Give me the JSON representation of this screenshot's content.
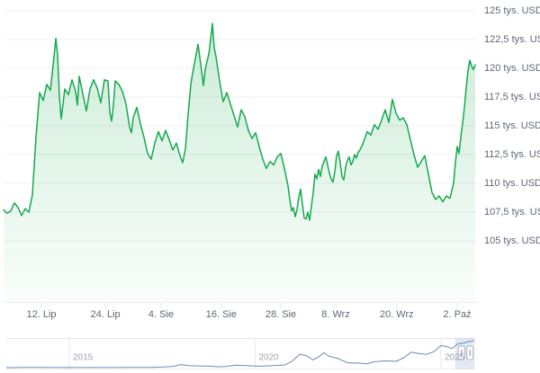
{
  "chart_data": {
    "type": "area",
    "unit": "tys. USD",
    "grid": true,
    "legend": "none",
    "main": {
      "line_color": "#16a94e",
      "area_tint_color": "#16a94e",
      "ylim": [
        105,
        125
      ],
      "y_axis_labels": [
        {
          "price": 125,
          "label": "125 tys. USD"
        },
        {
          "price": 122.5,
          "label": "122,5 tys. USD"
        },
        {
          "price": 120,
          "label": "120 tys. USD"
        },
        {
          "price": 117.5,
          "label": "117,5 tys. USD"
        },
        {
          "price": 115,
          "label": "115 tys. USD"
        },
        {
          "price": 112.5,
          "label": "112,5 tys. USD"
        },
        {
          "price": 110,
          "label": "110 tys. USD"
        },
        {
          "price": 107.5,
          "label": "107,5 tys. USD"
        },
        {
          "price": 105,
          "label": "105 tys. USD"
        }
      ],
      "x_axis_labels": [
        {
          "label": "12. Lip",
          "day": 7.5
        },
        {
          "label": "24. Lip",
          "day": 20.2
        },
        {
          "label": "4. Sie",
          "day": 31.25
        },
        {
          "label": "16. Sie",
          "day": 43.2
        },
        {
          "label": "28. Sie",
          "day": 55
        },
        {
          "label": "8. Wrz",
          "day": 65.9
        },
        {
          "label": "20. Wrz",
          "day": 78
        },
        {
          "label": "2. Paź",
          "day": 90
        }
      ],
      "points": [
        [
          0,
          107.7
        ],
        [
          0.71,
          107.4
        ],
        [
          1.43,
          107.6
        ],
        [
          2.14,
          108.3
        ],
        [
          2.86,
          107.9
        ],
        [
          3.57,
          107.2
        ],
        [
          4.29,
          107.8
        ],
        [
          5,
          107.5
        ],
        [
          5.71,
          109.0
        ],
        [
          6.43,
          114.0
        ],
        [
          7.14,
          117.9
        ],
        [
          7.86,
          117.2
        ],
        [
          8.57,
          118.6
        ],
        [
          9.29,
          118.1
        ],
        [
          10,
          121.0
        ],
        [
          10.36,
          122.6
        ],
        [
          10.71,
          121.2
        ],
        [
          11.07,
          117.6
        ],
        [
          11.43,
          115.6
        ],
        [
          11.79,
          116.9
        ],
        [
          12.14,
          118.2
        ],
        [
          12.86,
          117.7
        ],
        [
          13.57,
          119.0
        ],
        [
          14.29,
          118.0
        ],
        [
          14.64,
          116.8
        ],
        [
          15,
          119.3
        ],
        [
          15.71,
          117.8
        ],
        [
          16.43,
          116.3
        ],
        [
          17.14,
          118.2
        ],
        [
          17.86,
          119.0
        ],
        [
          18.57,
          118.3
        ],
        [
          19.29,
          117.0
        ],
        [
          20,
          119.0
        ],
        [
          20.71,
          118.9
        ],
        [
          21.07,
          116.2
        ],
        [
          21.43,
          115.4
        ],
        [
          21.79,
          116.8
        ],
        [
          22.14,
          118.9
        ],
        [
          22.86,
          118.6
        ],
        [
          23.57,
          118.0
        ],
        [
          24.29,
          116.9
        ],
        [
          25,
          114.9
        ],
        [
          25.36,
          114.4
        ],
        [
          25.71,
          115.7
        ],
        [
          26.43,
          116.6
        ],
        [
          27.14,
          115.2
        ],
        [
          27.86,
          114.0
        ],
        [
          28.57,
          112.6
        ],
        [
          29.29,
          112.1
        ],
        [
          30,
          113.5
        ],
        [
          30.71,
          114.5
        ],
        [
          31.43,
          113.7
        ],
        [
          32.14,
          114.6
        ],
        [
          32.86,
          113.8
        ],
        [
          33.57,
          112.9
        ],
        [
          34.29,
          113.5
        ],
        [
          35,
          112.4
        ],
        [
          35.54,
          111.8
        ],
        [
          36.07,
          113.0
        ],
        [
          36.61,
          116.0
        ],
        [
          37.14,
          118.6
        ],
        [
          37.68,
          120.0
        ],
        [
          38.21,
          121.2
        ],
        [
          38.57,
          122.1
        ],
        [
          39.29,
          119.8
        ],
        [
          39.64,
          118.5
        ],
        [
          40,
          119.9
        ],
        [
          40.36,
          120.6
        ],
        [
          40.71,
          121.2
        ],
        [
          41.07,
          122.5
        ],
        [
          41.43,
          123.9
        ],
        [
          41.79,
          121.8
        ],
        [
          42.14,
          121.0
        ],
        [
          42.86,
          118.9
        ],
        [
          43.57,
          117.1
        ],
        [
          44.29,
          117.9
        ],
        [
          45,
          116.9
        ],
        [
          45.71,
          115.9
        ],
        [
          46.43,
          114.9
        ],
        [
          47.14,
          116.4
        ],
        [
          47.86,
          115.8
        ],
        [
          48.57,
          114.6
        ],
        [
          49.29,
          113.9
        ],
        [
          50,
          114.4
        ],
        [
          50.71,
          113.2
        ],
        [
          51.43,
          112.1
        ],
        [
          52.14,
          111.3
        ],
        [
          52.86,
          111.9
        ],
        [
          53.57,
          111.6
        ],
        [
          54.29,
          112.3
        ],
        [
          55,
          112.6
        ],
        [
          55.71,
          111.3
        ],
        [
          56.43,
          109.8
        ],
        [
          56.79,
          108.6
        ],
        [
          57.14,
          107.6
        ],
        [
          57.5,
          107.9
        ],
        [
          57.86,
          107.1
        ],
        [
          58.21,
          107.7
        ],
        [
          58.57,
          108.8
        ],
        [
          58.93,
          109.5
        ],
        [
          59.29,
          108.2
        ],
        [
          59.64,
          107.0
        ],
        [
          60,
          106.9
        ],
        [
          60.36,
          107.5
        ],
        [
          60.71,
          106.8
        ],
        [
          61.07,
          108.0
        ],
        [
          61.43,
          109.2
        ],
        [
          61.79,
          110.8
        ],
        [
          62.14,
          110.4
        ],
        [
          62.5,
          111.2
        ],
        [
          62.86,
          110.6
        ],
        [
          63.21,
          111.5
        ],
        [
          63.57,
          111.9
        ],
        [
          63.93,
          112.3
        ],
        [
          64.29,
          111.6
        ],
        [
          64.64,
          110.9
        ],
        [
          65,
          110.4
        ],
        [
          65.36,
          110.1
        ],
        [
          65.71,
          111.0
        ],
        [
          66.07,
          112.4
        ],
        [
          66.43,
          112.8
        ],
        [
          66.79,
          111.8
        ],
        [
          67.14,
          110.6
        ],
        [
          67.5,
          110.3
        ],
        [
          67.86,
          111.4
        ],
        [
          68.21,
          112.0
        ],
        [
          68.57,
          112.3
        ],
        [
          68.93,
          111.6
        ],
        [
          69.29,
          111.9
        ],
        [
          69.64,
          112.5
        ],
        [
          70,
          112.2
        ],
        [
          70.36,
          112.7
        ],
        [
          70.71,
          112.9
        ],
        [
          71.43,
          113.6
        ],
        [
          72.14,
          114.5
        ],
        [
          72.86,
          114.2
        ],
        [
          73.57,
          115.1
        ],
        [
          74.29,
          114.7
        ],
        [
          75,
          115.5
        ],
        [
          75.71,
          116.4
        ],
        [
          76.43,
          115.3
        ],
        [
          77.14,
          117.3
        ],
        [
          77.86,
          116.1
        ],
        [
          78.57,
          115.5
        ],
        [
          79.29,
          115.7
        ],
        [
          80,
          115.1
        ],
        [
          80.71,
          113.8
        ],
        [
          81.43,
          112.5
        ],
        [
          82.14,
          111.4
        ],
        [
          82.86,
          111.9
        ],
        [
          83.57,
          112.4
        ],
        [
          84.29,
          110.8
        ],
        [
          85,
          109.2
        ],
        [
          85.71,
          108.6
        ],
        [
          86.43,
          108.9
        ],
        [
          87.14,
          108.4
        ],
        [
          87.86,
          108.9
        ],
        [
          88.57,
          108.7
        ],
        [
          89.29,
          110.0
        ],
        [
          89.64,
          111.8
        ],
        [
          90,
          113.2
        ],
        [
          90.36,
          112.6
        ],
        [
          90.71,
          114.0
        ],
        [
          91.07,
          115.2
        ],
        [
          91.43,
          116.6
        ],
        [
          91.79,
          118.3
        ],
        [
          92.14,
          119.8
        ],
        [
          92.5,
          120.7
        ],
        [
          92.86,
          120.2
        ],
        [
          93.21,
          119.9
        ],
        [
          93.57,
          120.3
        ]
      ]
    },
    "navigator": {
      "line_color": "#6d89b8",
      "year_labels": [
        {
          "label": "2015",
          "year": 2015
        },
        {
          "label": "2020",
          "year": 2020
        },
        {
          "label": "2025",
          "year": 2025
        }
      ],
      "selection": {
        "from_year": 2025.38,
        "to_year": 2025.9
      },
      "points": [
        [
          2013.3,
          0.1
        ],
        [
          2013.6,
          0.2
        ],
        [
          2013.9,
          1.0
        ],
        [
          2014.2,
          0.8
        ],
        [
          2014.5,
          0.6
        ],
        [
          2014.8,
          0.4
        ],
        [
          2015.1,
          0.25
        ],
        [
          2015.4,
          0.25
        ],
        [
          2015.7,
          0.3
        ],
        [
          2016,
          0.45
        ],
        [
          2016.3,
          0.42
        ],
        [
          2016.6,
          0.68
        ],
        [
          2016.9,
          0.75
        ],
        [
          2017.2,
          1.1
        ],
        [
          2017.5,
          2.4
        ],
        [
          2017.8,
          5.5
        ],
        [
          2018,
          13.5
        ],
        [
          2018.2,
          9
        ],
        [
          2018.4,
          7.5
        ],
        [
          2018.6,
          7
        ],
        [
          2018.8,
          6.4
        ],
        [
          2019,
          3.8
        ],
        [
          2019.2,
          5.2
        ],
        [
          2019.5,
          11
        ],
        [
          2019.8,
          8.3
        ],
        [
          2020,
          7.3
        ],
        [
          2020.2,
          6.2
        ],
        [
          2020.5,
          9.3
        ],
        [
          2020.8,
          11.5
        ],
        [
          2021,
          29
        ],
        [
          2021.2,
          60
        ],
        [
          2021.4,
          52
        ],
        [
          2021.55,
          34
        ],
        [
          2021.7,
          47
        ],
        [
          2021.85,
          66
        ],
        [
          2022,
          50
        ],
        [
          2022.2,
          42
        ],
        [
          2022.5,
          21
        ],
        [
          2022.8,
          20
        ],
        [
          2023,
          16.5
        ],
        [
          2023.2,
          26
        ],
        [
          2023.5,
          30
        ],
        [
          2023.8,
          28
        ],
        [
          2024,
          44
        ],
        [
          2024.2,
          69
        ],
        [
          2024.4,
          63
        ],
        [
          2024.6,
          59
        ],
        [
          2024.8,
          70
        ],
        [
          2025,
          98
        ],
        [
          2025.15,
          94
        ],
        [
          2025.3,
          85
        ],
        [
          2025.45,
          106
        ],
        [
          2025.6,
          109
        ],
        [
          2025.75,
          116
        ],
        [
          2025.9,
          120
        ]
      ]
    }
  }
}
